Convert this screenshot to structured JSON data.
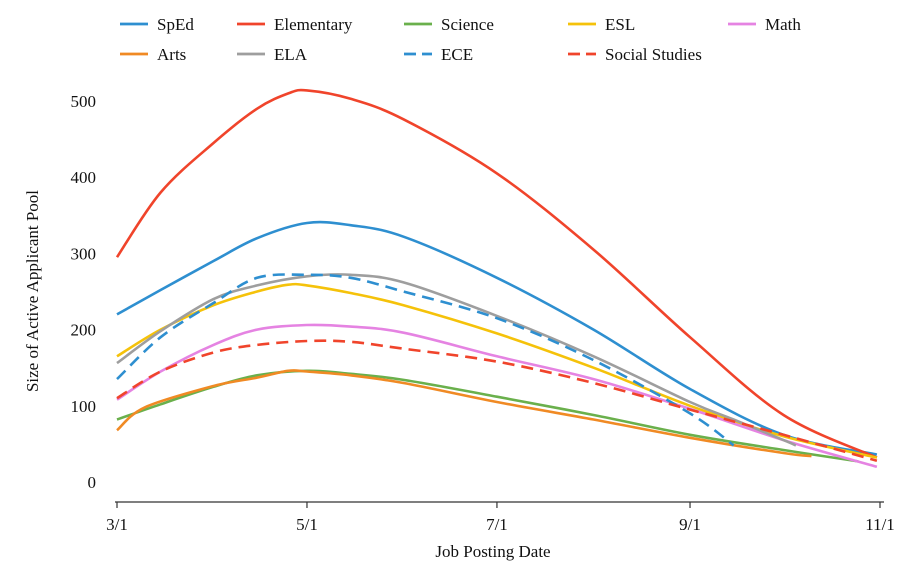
{
  "chart_data": {
    "type": "line",
    "title": "",
    "xlabel": "Job Posting Date",
    "ylabel": "Size of Active Applicant Pool",
    "x_ticks": [
      "3/1",
      "5/1",
      "7/1",
      "9/1",
      "11/1"
    ],
    "x_tick_dates": [
      "2000-03-01",
      "2000-05-01",
      "2000-07-01",
      "2000-09-01",
      "2000-11-01"
    ],
    "y_ticks": [
      0,
      100,
      200,
      300,
      400,
      500
    ],
    "xlim": [
      "2000-03-01",
      "2000-11-01"
    ],
    "ylim": [
      0,
      525
    ],
    "grid": false,
    "legend_position": "top",
    "series": [
      {
        "name": "SpEd",
        "color": "#2e8fd0",
        "dash": "solid",
        "points": [
          [
            "2000-03-01",
            220
          ],
          [
            "2000-03-15",
            252
          ],
          [
            "2000-04-01",
            290
          ],
          [
            "2000-04-15",
            320
          ],
          [
            "2000-05-01",
            340
          ],
          [
            "2000-05-15",
            337
          ],
          [
            "2000-06-01",
            322
          ],
          [
            "2000-07-01",
            268
          ],
          [
            "2000-08-01",
            200
          ],
          [
            "2000-09-01",
            122
          ],
          [
            "2000-10-01",
            62
          ],
          [
            "2000-10-31",
            36
          ]
        ]
      },
      {
        "name": "Elementary",
        "color": "#f0442b",
        "dash": "solid",
        "points": [
          [
            "2000-03-01",
            295
          ],
          [
            "2000-03-15",
            380
          ],
          [
            "2000-04-01",
            445
          ],
          [
            "2000-04-15",
            490
          ],
          [
            "2000-04-25",
            510
          ],
          [
            "2000-05-01",
            514
          ],
          [
            "2000-05-15",
            503
          ],
          [
            "2000-06-01",
            476
          ],
          [
            "2000-07-01",
            405
          ],
          [
            "2000-08-01",
            305
          ],
          [
            "2000-09-01",
            190
          ],
          [
            "2000-10-01",
            88
          ],
          [
            "2000-10-31",
            32
          ]
        ]
      },
      {
        "name": "Science",
        "color": "#6ab04c",
        "dash": "solid",
        "points": [
          [
            "2000-03-01",
            82
          ],
          [
            "2000-03-15",
            102
          ],
          [
            "2000-04-01",
            125
          ],
          [
            "2000-04-15",
            140
          ],
          [
            "2000-05-01",
            146
          ],
          [
            "2000-05-15",
            142
          ],
          [
            "2000-06-01",
            134
          ],
          [
            "2000-07-01",
            112
          ],
          [
            "2000-08-01",
            88
          ],
          [
            "2000-09-01",
            62
          ],
          [
            "2000-10-01",
            42
          ],
          [
            "2000-10-25",
            27
          ]
        ]
      },
      {
        "name": "ESL",
        "color": "#f5c20a",
        "dash": "solid",
        "points": [
          [
            "2000-03-01",
            165
          ],
          [
            "2000-03-15",
            200
          ],
          [
            "2000-04-01",
            232
          ],
          [
            "2000-04-15",
            250
          ],
          [
            "2000-04-25",
            259
          ],
          [
            "2000-05-01",
            258
          ],
          [
            "2000-05-15",
            248
          ],
          [
            "2000-06-01",
            232
          ],
          [
            "2000-07-01",
            195
          ],
          [
            "2000-08-01",
            150
          ],
          [
            "2000-09-01",
            100
          ],
          [
            "2000-10-01",
            60
          ],
          [
            "2000-10-31",
            32
          ]
        ]
      },
      {
        "name": "Math",
        "color": "#e583e2",
        "dash": "solid",
        "points": [
          [
            "2000-03-01",
            108
          ],
          [
            "2000-03-15",
            145
          ],
          [
            "2000-04-01",
            180
          ],
          [
            "2000-04-15",
            200
          ],
          [
            "2000-05-01",
            206
          ],
          [
            "2000-05-15",
            204
          ],
          [
            "2000-06-01",
            196
          ],
          [
            "2000-07-01",
            165
          ],
          [
            "2000-08-01",
            135
          ],
          [
            "2000-09-01",
            96
          ],
          [
            "2000-10-01",
            55
          ],
          [
            "2000-10-31",
            20
          ]
        ]
      },
      {
        "name": "Arts",
        "color": "#f08a24",
        "dash": "solid",
        "points": [
          [
            "2000-03-01",
            68
          ],
          [
            "2000-03-10",
            98
          ],
          [
            "2000-04-01",
            126
          ],
          [
            "2000-04-15",
            137
          ],
          [
            "2000-04-25",
            146
          ],
          [
            "2000-05-01",
            145
          ],
          [
            "2000-05-15",
            140
          ],
          [
            "2000-06-01",
            130
          ],
          [
            "2000-07-01",
            105
          ],
          [
            "2000-08-01",
            82
          ],
          [
            "2000-09-01",
            58
          ],
          [
            "2000-10-01",
            38
          ],
          [
            "2000-10-10",
            34
          ]
        ]
      },
      {
        "name": "ELA",
        "color": "#9e9e9e",
        "dash": "solid",
        "points": [
          [
            "2000-03-01",
            156
          ],
          [
            "2000-03-15",
            198
          ],
          [
            "2000-04-01",
            240
          ],
          [
            "2000-04-15",
            258
          ],
          [
            "2000-05-01",
            270
          ],
          [
            "2000-05-15",
            272
          ],
          [
            "2000-06-01",
            262
          ],
          [
            "2000-07-01",
            218
          ],
          [
            "2000-08-01",
            165
          ],
          [
            "2000-09-01",
            105
          ],
          [
            "2000-09-15",
            82
          ],
          [
            "2000-10-01",
            55
          ],
          [
            "2000-10-05",
            48
          ]
        ]
      },
      {
        "name": "ECE",
        "color": "#2e8fd0",
        "dash": "dash",
        "points": [
          [
            "2000-03-01",
            135
          ],
          [
            "2000-03-15",
            190
          ],
          [
            "2000-04-01",
            235
          ],
          [
            "2000-04-15",
            268
          ],
          [
            "2000-05-01",
            272
          ],
          [
            "2000-05-15",
            268
          ],
          [
            "2000-06-01",
            250
          ],
          [
            "2000-07-01",
            215
          ],
          [
            "2000-08-01",
            160
          ],
          [
            "2000-09-01",
            90
          ],
          [
            "2000-09-15",
            48
          ]
        ]
      },
      {
        "name": "Social Studies",
        "color": "#f0442b",
        "dash": "dash",
        "points": [
          [
            "2000-03-01",
            110
          ],
          [
            "2000-03-15",
            145
          ],
          [
            "2000-04-01",
            170
          ],
          [
            "2000-04-15",
            180
          ],
          [
            "2000-05-01",
            185
          ],
          [
            "2000-05-15",
            184
          ],
          [
            "2000-06-01",
            175
          ],
          [
            "2000-07-01",
            158
          ],
          [
            "2000-08-01",
            130
          ],
          [
            "2000-09-01",
            95
          ],
          [
            "2000-10-01",
            62
          ],
          [
            "2000-10-31",
            28
          ]
        ]
      }
    ],
    "legend_order": [
      "SpEd",
      "Elementary",
      "Science",
      "ESL",
      "Math",
      "Arts",
      "ELA",
      "ECE",
      "Social Studies"
    ]
  }
}
